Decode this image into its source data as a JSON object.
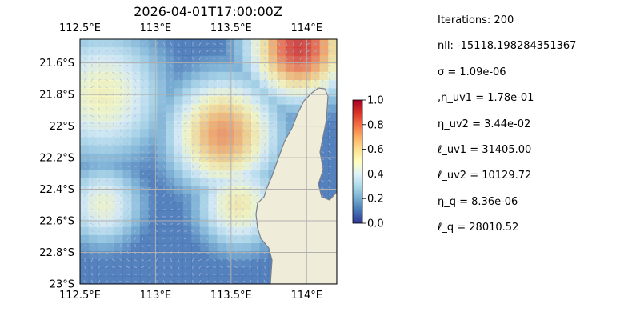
{
  "chart_data": {
    "type": "heatmap",
    "title": "2026-04-01T17:00:00Z",
    "x_range": [
      112.5,
      114.2
    ],
    "y_range": [
      -23.0,
      -21.45
    ],
    "x_ticks": [
      {
        "value": 112.5,
        "label": "112.5°E"
      },
      {
        "value": 113.0,
        "label": "113°E"
      },
      {
        "value": 113.5,
        "label": "113.5°E"
      },
      {
        "value": 114.0,
        "label": "114°E"
      }
    ],
    "y_ticks": [
      {
        "value": -21.6,
        "label": "21.6°S"
      },
      {
        "value": -21.8,
        "label": "21.8°S"
      },
      {
        "value": -22.0,
        "label": "22°S"
      },
      {
        "value": -22.2,
        "label": "22.2°S"
      },
      {
        "value": -22.4,
        "label": "22.4°S"
      },
      {
        "value": -22.6,
        "label": "22.6°S"
      },
      {
        "value": -22.8,
        "label": "22.8°S"
      },
      {
        "value": -23.0,
        "label": "23°S"
      }
    ],
    "grid": true,
    "colorbar": {
      "min": 0.0,
      "max": 1.0,
      "ticks": [
        "0.0",
        "0.2",
        "0.4",
        "0.6",
        "0.8",
        "1.0"
      ],
      "colormap": [
        "#313695",
        "#4575b4",
        "#74add1",
        "#abd9e9",
        "#e0f3f8",
        "#ffffbf",
        "#fee090",
        "#fdae61",
        "#f46d43",
        "#d73027",
        "#a50026"
      ]
    },
    "field": {
      "cols": 30,
      "rows": 30,
      "hotspots": [
        {
          "lon": 113.45,
          "lat": -22.05,
          "value": 0.74,
          "spread": 0.38
        },
        {
          "lon": 113.95,
          "lat": -21.5,
          "value": 0.9,
          "spread": 0.35
        },
        {
          "lon": 112.65,
          "lat": -21.8,
          "value": 0.52,
          "spread": 0.45
        },
        {
          "lon": 112.65,
          "lat": -22.5,
          "value": 0.48,
          "spread": 0.28
        },
        {
          "lon": 113.55,
          "lat": -22.5,
          "value": 0.55,
          "spread": 0.3
        }
      ],
      "base_value": 0.1
    },
    "vector_field": {
      "description": "ocean current arrows",
      "color": "#aebfe0"
    },
    "land_color": "#efedda",
    "coast_color": "#7a7f8c",
    "ocean_color": "#9db8e3"
  },
  "info": {
    "iterations": "Iterations: 200",
    "nll": "nll: -15118.198284351367",
    "sigma": "σ = 1.09e-06",
    "eta_uv1": ",η_uv1 = 1.78e-01",
    "eta_uv2": "η_uv2 = 3.44e-02",
    "ell_uv1": "ℓ_uv1 = 31405.00",
    "ell_uv2": "ℓ_uv2 = 10129.72",
    "eta_q": "η_q = 8.36e-06",
    "ell_q": "ℓ_q = 28010.52"
  }
}
